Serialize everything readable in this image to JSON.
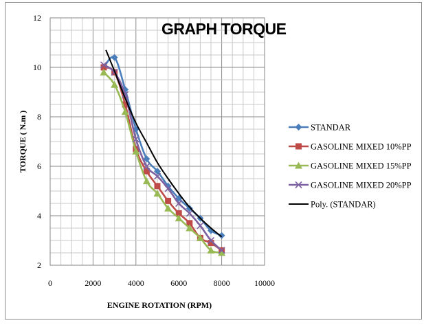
{
  "chart_data": {
    "type": "line",
    "title": "GRAPH TORQUE",
    "xlabel": "ENGINE ROTATION (RPM)",
    "ylabel": "TORQUE ( N.m )",
    "xlim": [
      0,
      10000
    ],
    "ylim": [
      2,
      12
    ],
    "x_ticks": [
      "0",
      "2000",
      "4000",
      "6000",
      "8000",
      "10000"
    ],
    "y_ticks": [
      "2",
      "4",
      "6",
      "8",
      "10",
      "12"
    ],
    "grid": "major and minor",
    "legend_position": "right",
    "series": [
      {
        "name": "STANDAR",
        "color": "#4a7ebb",
        "marker": "diamond",
        "x": [
          2500,
          3000,
          3500,
          4000,
          4500,
          5000,
          5500,
          6000,
          6500,
          7000,
          7500,
          8000
        ],
        "y": [
          10.0,
          10.4,
          9.1,
          7.5,
          6.3,
          5.8,
          5.2,
          4.7,
          4.3,
          3.9,
          3.4,
          3.2
        ]
      },
      {
        "name": "GASOLINE MIXED 10%PP",
        "color": "#be4b48",
        "marker": "square",
        "x": [
          2500,
          3000,
          3500,
          4000,
          4500,
          5000,
          5500,
          6000,
          6500,
          7000,
          7500,
          8000
        ],
        "y": [
          10.0,
          9.8,
          8.5,
          6.7,
          5.8,
          5.2,
          4.6,
          4.1,
          3.7,
          3.1,
          2.9,
          2.6
        ]
      },
      {
        "name": "GASOLINE MIXED 15%PP",
        "color": "#98b954",
        "marker": "triangle",
        "x": [
          2500,
          3000,
          3500,
          4000,
          4500,
          5000,
          5500,
          6000,
          6500,
          7000,
          7500,
          8000
        ],
        "y": [
          9.8,
          9.3,
          8.2,
          6.6,
          5.4,
          4.9,
          4.3,
          3.9,
          3.5,
          3.1,
          2.6,
          2.5
        ]
      },
      {
        "name": "GASOLINE MIXED 20%PP",
        "color": "#7d60a0",
        "marker": "x",
        "x": [
          2500,
          3000,
          3500,
          4000,
          4500,
          5000,
          5500,
          6000,
          6500,
          7000,
          7500,
          8000
        ],
        "y": [
          10.1,
          9.8,
          8.9,
          7.1,
          6.0,
          5.6,
          5.1,
          4.5,
          4.1,
          3.6,
          3.0,
          2.6
        ]
      },
      {
        "name": "Poly. (STANDAR)",
        "color": "#000000",
        "marker": "none",
        "trendline": "polynomial",
        "x": [
          2600,
          3000,
          3500,
          4000,
          4500,
          5000,
          5500,
          6000,
          6500,
          7000,
          7500,
          8000
        ],
        "y": [
          10.7,
          9.85,
          8.75,
          7.75,
          6.95,
          6.15,
          5.5,
          4.9,
          4.35,
          3.9,
          3.5,
          3.15
        ]
      }
    ]
  }
}
